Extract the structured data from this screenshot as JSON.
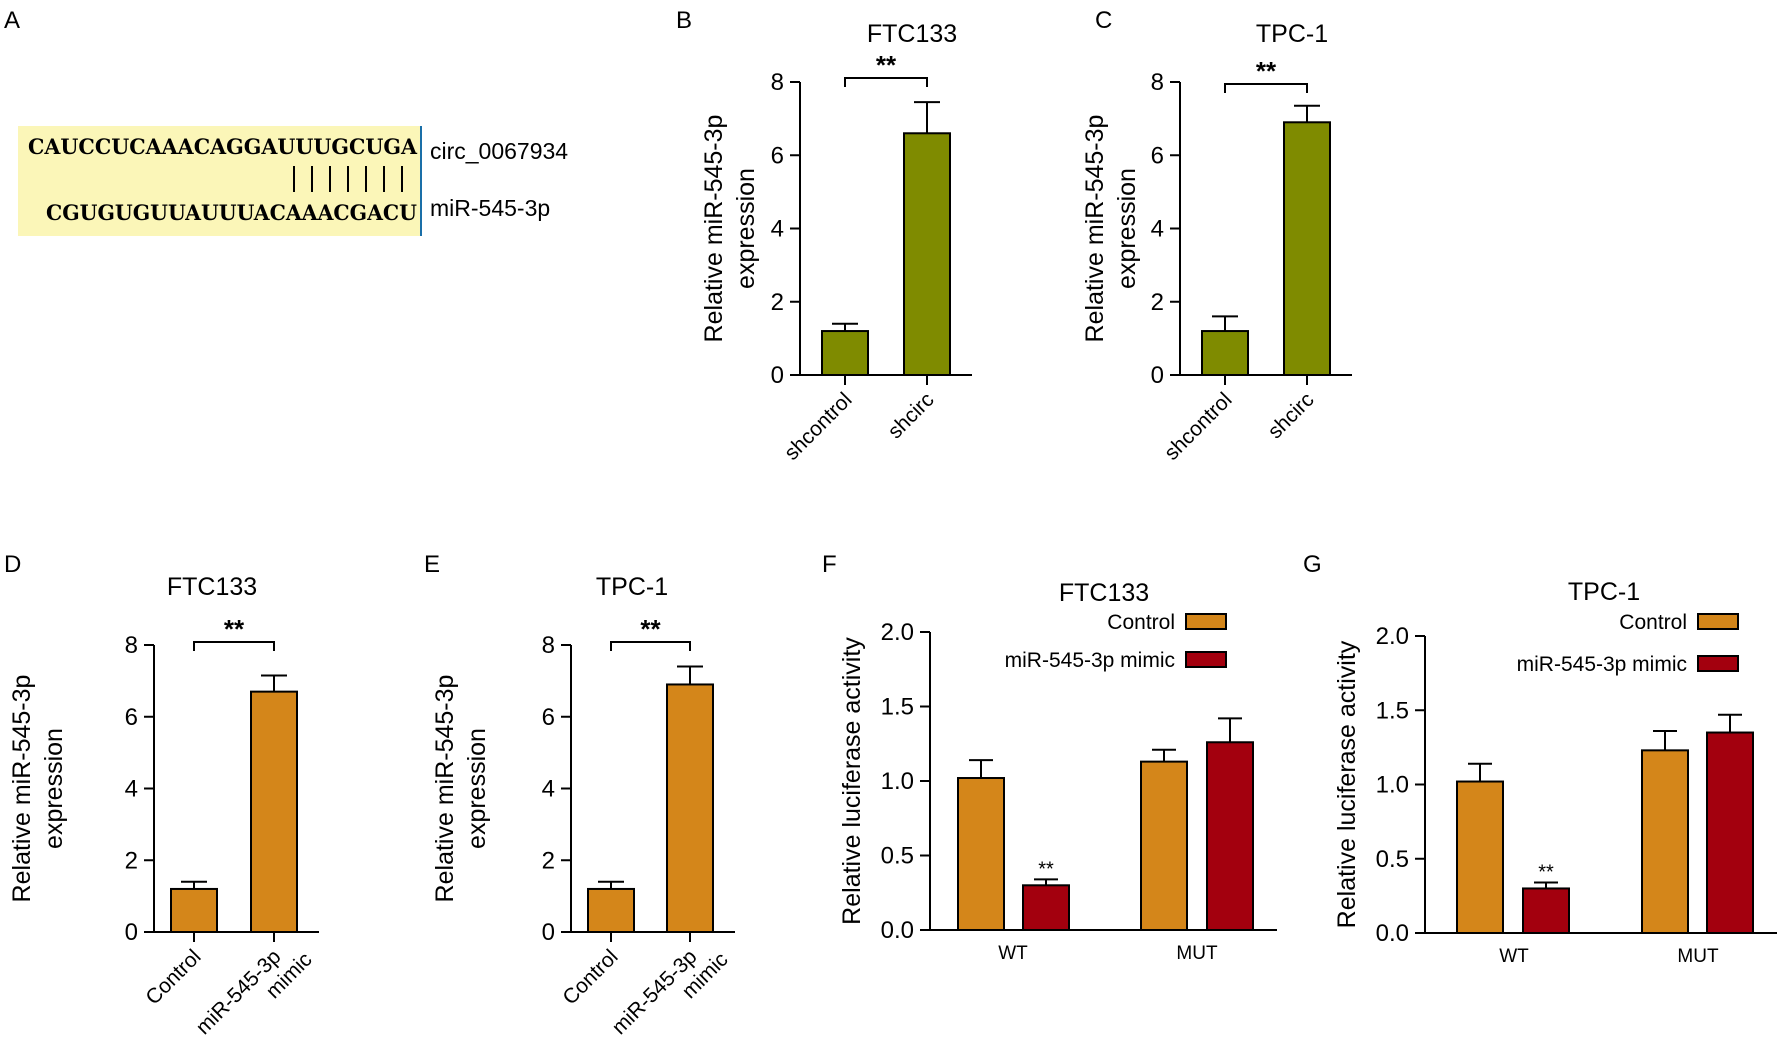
{
  "panel_labels": [
    "A",
    "B",
    "C",
    "D",
    "E",
    "F",
    "G"
  ],
  "sequence": {
    "circ_seq": "CAUCCUCAAACAGGAUUUGCUGA",
    "mir_seq": "CGUGUGUUAUUUACAAACGACU",
    "circ_label": "circ_0067934",
    "mir_label": "miR-545-3p",
    "pair_count": 7,
    "highlight": "#fbf6b8"
  },
  "colors": {
    "olive": "#7f8b00",
    "orange": "#d4861a",
    "red": "#a3000e"
  },
  "chart_data": [
    {
      "id": "B",
      "type": "bar",
      "title": "FTC133",
      "ylabel": [
        "Relative miR-545-3p",
        "expression"
      ],
      "categories": [
        "shcontrol",
        "shcirc"
      ],
      "values": [
        1.2,
        6.6
      ],
      "errors": [
        0.2,
        0.85
      ],
      "yticks": [
        "0",
        "2",
        "4",
        "6",
        "8"
      ],
      "ylim": [
        0,
        8
      ],
      "significance": "**",
      "color": "#7f8b00"
    },
    {
      "id": "C",
      "type": "bar",
      "title": "TPC-1",
      "ylabel": [
        "Relative miR-545-3p",
        "expression"
      ],
      "categories": [
        "shcontrol",
        "shcirc"
      ],
      "values": [
        1.2,
        6.9
      ],
      "errors": [
        0.4,
        0.45
      ],
      "yticks": [
        "0",
        "2",
        "4",
        "6",
        "8"
      ],
      "ylim": [
        0,
        8
      ],
      "significance": "**",
      "color": "#7f8b00"
    },
    {
      "id": "D",
      "type": "bar",
      "title": "FTC133",
      "ylabel": [
        "Relative miR-545-3p",
        "expression"
      ],
      "categories": [
        "Control",
        "miR-545-3p mimic"
      ],
      "values": [
        1.2,
        6.7
      ],
      "errors": [
        0.2,
        0.45
      ],
      "yticks": [
        "0",
        "2",
        "4",
        "6",
        "8"
      ],
      "ylim": [
        0,
        8
      ],
      "significance": "**",
      "color": "#d4861a"
    },
    {
      "id": "E",
      "type": "bar",
      "title": "TPC-1",
      "ylabel": [
        "Relative miR-545-3p",
        "expression"
      ],
      "categories": [
        "Control",
        "miR-545-3p mimic"
      ],
      "values": [
        1.2,
        6.9
      ],
      "errors": [
        0.2,
        0.5
      ],
      "yticks": [
        "0",
        "2",
        "4",
        "6",
        "8"
      ],
      "ylim": [
        0,
        8
      ],
      "significance": "**",
      "color": "#d4861a"
    },
    {
      "id": "F",
      "type": "bar",
      "title": "FTC133",
      "ylabel": [
        "Relative luciferase activity"
      ],
      "categories": [
        "WT",
        "MUT"
      ],
      "series": [
        {
          "name": "Control",
          "values": [
            1.02,
            1.13
          ],
          "errors": [
            0.12,
            0.08
          ],
          "color": "#d4861a"
        },
        {
          "name": "miR-545-3p mimic",
          "values": [
            0.3,
            1.26
          ],
          "errors": [
            0.04,
            0.16
          ],
          "color": "#a3000e"
        }
      ],
      "yticks": [
        "0.0",
        "0.5",
        "1.0",
        "1.5",
        "2.0"
      ],
      "ylim": [
        0,
        2.0
      ],
      "significance": "**",
      "legend": "top-right"
    },
    {
      "id": "G",
      "type": "bar",
      "title": "TPC-1",
      "ylabel": [
        "Relative luciferase activity"
      ],
      "categories": [
        "WT",
        "MUT"
      ],
      "series": [
        {
          "name": "Control",
          "values": [
            1.02,
            1.23
          ],
          "errors": [
            0.12,
            0.13
          ],
          "color": "#d4861a"
        },
        {
          "name": "miR-545-3p mimic",
          "values": [
            0.3,
            1.35
          ],
          "errors": [
            0.04,
            0.12
          ],
          "color": "#a3000e"
        }
      ],
      "yticks": [
        "0.0",
        "0.5",
        "1.0",
        "1.5",
        "2.0"
      ],
      "ylim": [
        0,
        2.0
      ],
      "significance": "**",
      "legend": "top-right"
    }
  ]
}
